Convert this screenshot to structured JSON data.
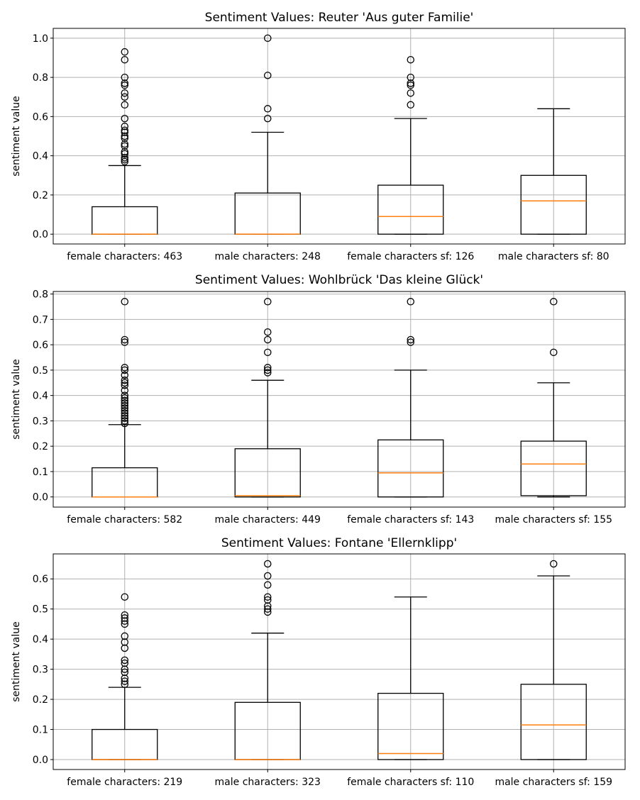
{
  "colors": {
    "median": "#ff7f0e",
    "grid": "#b0b0b0",
    "box": "#000000",
    "background": "#ffffff"
  },
  "chart_data": [
    {
      "type": "boxplot",
      "title": "Sentiment Values: Reuter 'Aus guter Familie'",
      "xlabel": "",
      "ylabel": "sentiment value",
      "ylim": [
        -0.05,
        1.05
      ],
      "yticks": [
        0.0,
        0.2,
        0.4,
        0.6,
        0.8,
        1.0
      ],
      "ytick_labels": [
        "0.0",
        "0.2",
        "0.4",
        "0.6",
        "0.8",
        "1.0"
      ],
      "grid": true,
      "categories": [
        "female characters: 463",
        "male characters: 248",
        "female characters sf: 126",
        "male characters sf: 80"
      ],
      "boxes": [
        {
          "q1": 0.0,
          "median": 0.0,
          "q3": 0.14,
          "whisker_low": 0.0,
          "whisker_high": 0.35,
          "outliers": [
            0.37,
            0.38,
            0.39,
            0.41,
            0.42,
            0.45,
            0.46,
            0.49,
            0.5,
            0.52,
            0.53,
            0.55,
            0.59,
            0.66,
            0.7,
            0.72,
            0.76,
            0.77,
            0.8,
            0.89,
            0.93
          ]
        },
        {
          "q1": 0.0,
          "median": 0.0,
          "q3": 0.21,
          "whisker_low": 0.0,
          "whisker_high": 0.52,
          "outliers": [
            0.59,
            0.64,
            0.81,
            1.0
          ]
        },
        {
          "q1": 0.0,
          "median": 0.09,
          "q3": 0.25,
          "whisker_low": 0.0,
          "whisker_high": 0.59,
          "outliers": [
            0.66,
            0.72,
            0.76,
            0.77,
            0.8,
            0.89
          ]
        },
        {
          "q1": 0.0,
          "median": 0.17,
          "q3": 0.3,
          "whisker_low": 0.0,
          "whisker_high": 0.64,
          "outliers": []
        }
      ]
    },
    {
      "type": "boxplot",
      "title": "Sentiment Values: Wohlbrück 'Das kleine Glück'",
      "xlabel": "",
      "ylabel": "sentiment value",
      "ylim": [
        -0.04,
        0.81
      ],
      "yticks": [
        0.0,
        0.1,
        0.2,
        0.3,
        0.4,
        0.5,
        0.6,
        0.7,
        0.8
      ],
      "ytick_labels": [
        "0.0",
        "0.1",
        "0.2",
        "0.3",
        "0.4",
        "0.5",
        "0.6",
        "0.7",
        "0.8"
      ],
      "grid": true,
      "categories": [
        "female characters: 582",
        "male characters: 449",
        "female characters sf: 143",
        "male characters sf: 155"
      ],
      "boxes": [
        {
          "q1": 0.0,
          "median": 0.0,
          "q3": 0.115,
          "whisker_low": 0.0,
          "whisker_high": 0.285,
          "outliers": [
            0.29,
            0.3,
            0.31,
            0.32,
            0.33,
            0.34,
            0.35,
            0.36,
            0.37,
            0.38,
            0.39,
            0.4,
            0.42,
            0.44,
            0.45,
            0.46,
            0.48,
            0.5,
            0.51,
            0.61,
            0.62,
            0.77
          ]
        },
        {
          "q1": 0.0,
          "median": 0.005,
          "q3": 0.19,
          "whisker_low": 0.0,
          "whisker_high": 0.46,
          "outliers": [
            0.49,
            0.5,
            0.51,
            0.57,
            0.62,
            0.65,
            0.77
          ]
        },
        {
          "q1": 0.0,
          "median": 0.095,
          "q3": 0.225,
          "whisker_low": 0.0,
          "whisker_high": 0.5,
          "outliers": [
            0.61,
            0.62,
            0.77
          ]
        },
        {
          "q1": 0.005,
          "median": 0.13,
          "q3": 0.22,
          "whisker_low": 0.0,
          "whisker_high": 0.45,
          "outliers": [
            0.57,
            0.77
          ]
        }
      ]
    },
    {
      "type": "boxplot",
      "title": "Sentiment Values: Fontane 'Ellernklipp'",
      "xlabel": "",
      "ylabel": "sentiment value",
      "ylim": [
        -0.033,
        0.683
      ],
      "yticks": [
        0.0,
        0.1,
        0.2,
        0.3,
        0.4,
        0.5,
        0.6
      ],
      "ytick_labels": [
        "0.0",
        "0.1",
        "0.2",
        "0.3",
        "0.4",
        "0.5",
        "0.6"
      ],
      "grid": true,
      "categories": [
        "female characters: 219",
        "male characters: 323",
        "female characters sf: 110",
        "male characters sf: 159"
      ],
      "boxes": [
        {
          "q1": 0.0,
          "median": 0.0,
          "q3": 0.1,
          "whisker_low": 0.0,
          "whisker_high": 0.24,
          "outliers": [
            0.25,
            0.26,
            0.27,
            0.29,
            0.3,
            0.32,
            0.33,
            0.37,
            0.39,
            0.41,
            0.45,
            0.46,
            0.47,
            0.48,
            0.54
          ]
        },
        {
          "q1": 0.0,
          "median": 0.0,
          "q3": 0.19,
          "whisker_low": 0.0,
          "whisker_high": 0.42,
          "outliers": [
            0.49,
            0.5,
            0.51,
            0.53,
            0.54,
            0.58,
            0.61,
            0.65
          ]
        },
        {
          "q1": 0.0,
          "median": 0.02,
          "q3": 0.22,
          "whisker_low": 0.0,
          "whisker_high": 0.54,
          "outliers": []
        },
        {
          "q1": 0.0,
          "median": 0.115,
          "q3": 0.25,
          "whisker_low": 0.0,
          "whisker_high": 0.61,
          "outliers": [
            0.65
          ]
        }
      ]
    }
  ]
}
